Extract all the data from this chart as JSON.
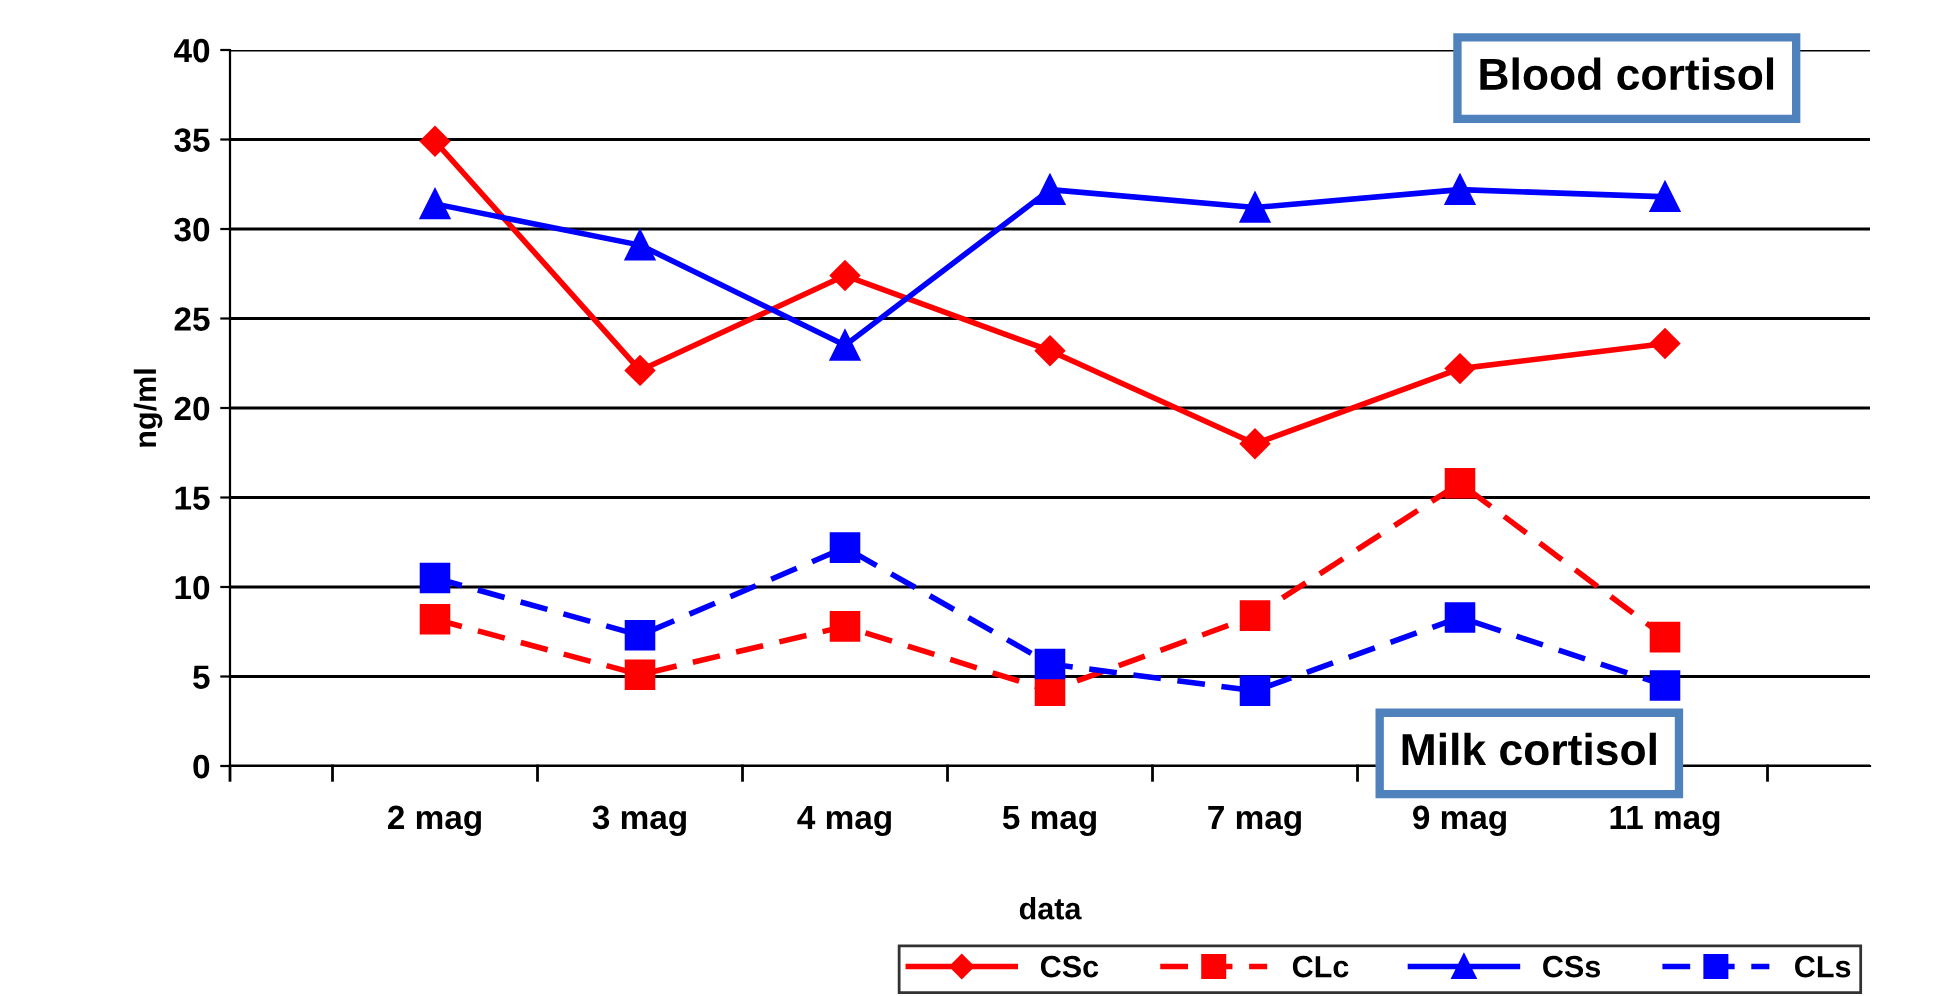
{
  "chart_data": {
    "type": "line",
    "xlabel": "data",
    "ylabel": "ng/ml",
    "categories": [
      "2 mag",
      "3 mag",
      "4 mag",
      "5 mag",
      "7 mag",
      "9 mag",
      "11 mag"
    ],
    "series": [
      {
        "name": "CSc",
        "color": "#ff0000",
        "marker": "diamond",
        "line_style": "solid",
        "values": [
          34.9,
          22.1,
          27.4,
          23.2,
          18.0,
          22.2,
          23.6
        ]
      },
      {
        "name": "CLc",
        "color": "#ff0000",
        "marker": "square",
        "line_style": "dashed",
        "values": [
          8.2,
          5.1,
          7.8,
          4.2,
          8.4,
          15.8,
          7.2
        ]
      },
      {
        "name": "CSs",
        "color": "#0000ff",
        "marker": "triangle",
        "line_style": "solid",
        "values": [
          31.4,
          29.1,
          23.5,
          32.2,
          31.2,
          32.2,
          31.8
        ]
      },
      {
        "name": "CLs",
        "color": "#0000ff",
        "marker": "square",
        "line_style": "dashed",
        "values": [
          10.5,
          7.3,
          12.2,
          5.7,
          4.2,
          8.3,
          4.5
        ]
      }
    ],
    "ylim": [
      0,
      40
    ],
    "yticks": [
      0,
      5,
      10,
      15,
      20,
      25,
      30,
      35,
      40
    ],
    "grid": "y",
    "legend": "bottom right",
    "annotations": [
      "Blood cortisol",
      "Milk cortisol"
    ]
  }
}
